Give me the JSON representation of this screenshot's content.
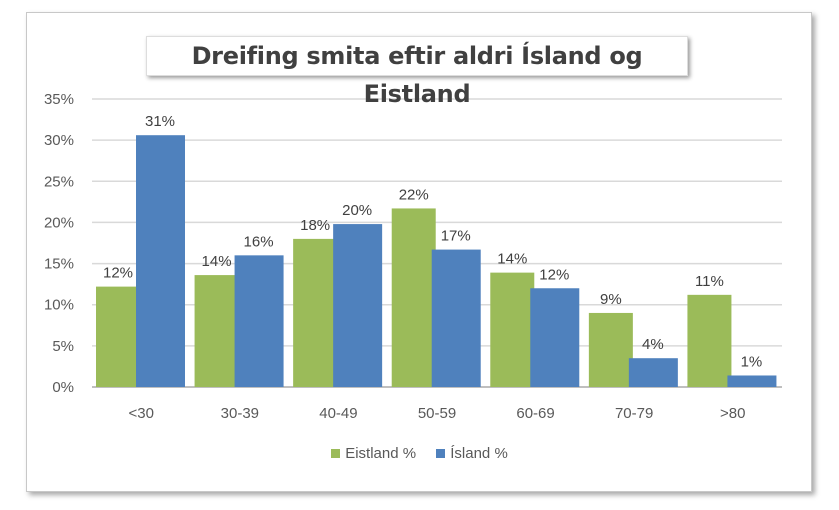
{
  "chart_data": {
    "type": "bar",
    "title": "Dreifing smita eftir aldri Ísland og Eistland",
    "categories": [
      "<30",
      "30-39",
      "40-49",
      "50-59",
      "60-69",
      "70-79",
      ">80"
    ],
    "series": [
      {
        "name": "Eistland %",
        "color": "#9bbb59",
        "values": [
          12.2,
          13.6,
          18.0,
          21.7,
          13.9,
          9.0,
          11.2
        ],
        "labels": [
          "12%",
          "14%",
          "18%",
          "22%",
          "14%",
          "9%",
          "11%"
        ]
      },
      {
        "name": "Ísland %",
        "color": "#4f81bd",
        "values": [
          30.6,
          16.0,
          19.8,
          16.7,
          12.0,
          3.5,
          1.4
        ],
        "labels": [
          "31%",
          "16%",
          "20%",
          "17%",
          "12%",
          "4%",
          "1%"
        ]
      }
    ],
    "yticks": [
      "0%",
      "5%",
      "10%",
      "15%",
      "20%",
      "25%",
      "30%",
      "35%"
    ],
    "ylim": [
      0,
      35
    ],
    "grid": true,
    "legend": "bottom"
  }
}
